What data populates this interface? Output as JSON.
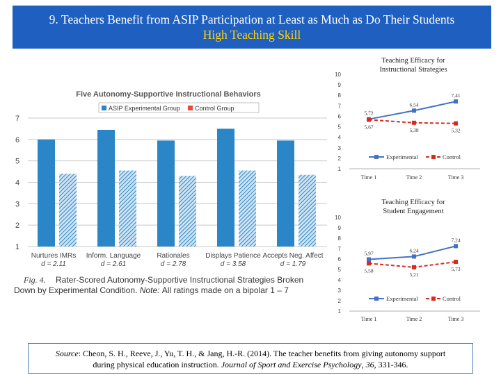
{
  "slide": {
    "title_line1": "9.  Teachers Benefit from ASIP Participation at Least as Much as Do Their Students",
    "title_line2": "High Teaching Skill",
    "colors": {
      "title_bg": "#1f5fbf",
      "title_text": "#ffffff",
      "subtitle_text": "#ffd400",
      "asip": "#2a86c7",
      "control": "#e94a3c",
      "experimental": "#4472c4",
      "control_line": "#d62c1f"
    }
  },
  "chart_data": [
    {
      "type": "bar",
      "title": "Five Autonomy-Supportive Instructional Behaviors",
      "categories": [
        "Nurtures IMRs",
        "Inform. Language",
        "Rationales",
        "Displays Patience",
        "Accepts Neg. Affect"
      ],
      "effect_sizes": [
        "d = 2.11",
        "d = 2.61",
        "d = 2.78",
        "d = 3.58",
        "d = 1.79"
      ],
      "series": [
        {
          "name": "ASIP Experimental Group",
          "values": [
            6.0,
            6.45,
            5.95,
            6.5,
            5.95
          ]
        },
        {
          "name": "Control Group",
          "values": [
            4.4,
            4.55,
            4.3,
            4.55,
            4.35
          ]
        }
      ],
      "yticks": [
        "1",
        "2",
        "3",
        "4",
        "5",
        "6",
        "7"
      ],
      "ylim": [
        1,
        7
      ],
      "grid": true,
      "legend": "top",
      "caption_label": "Fig. 4.",
      "caption_line1": "Rater-Scored Autonomy-Supportive Instructional Strategies Broken",
      "caption_line2_a": "Down  by  Experimental  Condition.",
      "caption_note": "Note:",
      "caption_line2_b": "All  ratings  made  on  a  bipolar  1 – 7"
    },
    {
      "type": "line",
      "title_line1": "Teaching Efficacy for",
      "title_line2": "Instructional Strategies",
      "categories": [
        "Time 1",
        "Time 2",
        "Time 3"
      ],
      "yticks": [
        "1",
        "2",
        "3",
        "4",
        "5",
        "6",
        "7",
        "8",
        "9",
        "10"
      ],
      "ylim": [
        1,
        10
      ],
      "series": [
        {
          "name": "Experimental",
          "values": [
            5.72,
            6.54,
            7.41
          ],
          "labels": [
            "5,72",
            "6,54",
            "7,41"
          ]
        },
        {
          "name": "Control",
          "values": [
            5.67,
            5.38,
            5.32
          ],
          "labels": [
            "5,67",
            "5,38",
            "5,32"
          ]
        }
      ],
      "legend": "bottom"
    },
    {
      "type": "line",
      "title_line1": "Teaching Efficacy for",
      "title_line2": "Student Engagement",
      "categories": [
        "Time 1",
        "Time 2",
        "Time 3"
      ],
      "yticks": [
        "1",
        "2",
        "3",
        "4",
        "5",
        "6",
        "7",
        "8",
        "9",
        "10"
      ],
      "ylim": [
        1,
        10
      ],
      "series": [
        {
          "name": "Experimental",
          "values": [
            5.97,
            6.24,
            7.24
          ],
          "labels": [
            "5,97",
            "6,24",
            "7,24"
          ]
        },
        {
          "name": "Control",
          "values": [
            5.58,
            5.21,
            5.73
          ],
          "labels": [
            "5,58",
            "5,21",
            "5,73"
          ]
        }
      ],
      "legend": "bottom"
    }
  ],
  "source": {
    "prefix": "Source",
    "text1": ": Cheon, S. H., Reeve, J., Yu, T. H., & Jang, H.-R. (2014). The teacher benefits from giving autonomy support",
    "text2": "during physical education instruction. ",
    "journal": "Journal of Sport and Exercise Psychology",
    "volume": "36",
    "pages": ", 331-346."
  }
}
